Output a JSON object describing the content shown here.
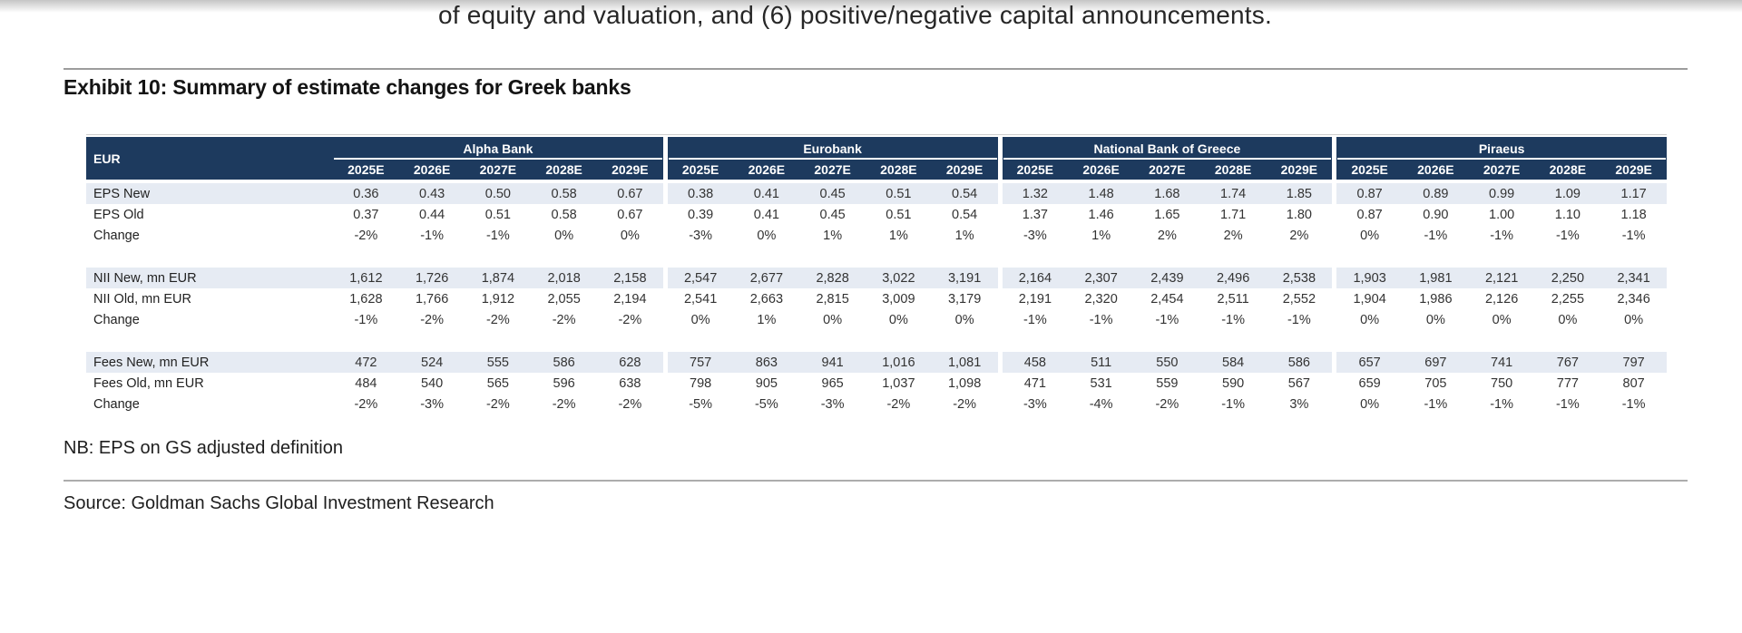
{
  "page": {
    "body_text": "of equity and valuation, and (6) positive/negative capital announcements.",
    "exhibit_title": "Exhibit 10: Summary of estimate changes for Greek banks",
    "note": "NB: EPS on GS adjusted definition",
    "source": "Source: Goldman Sachs Global Investment Research"
  },
  "colors": {
    "header_navy": "#1d3a5e",
    "row_shade": "#e6ebf3"
  },
  "table": {
    "corner_label": "EUR",
    "banks": [
      "Alpha Bank",
      "Eurobank",
      "National Bank of Greece",
      "Piraeus"
    ],
    "year_headers": [
      "2025E",
      "2026E",
      "2027E",
      "2028E",
      "2029E"
    ],
    "sections": [
      {
        "rows": [
          {
            "label": "EPS New",
            "shaded": true,
            "values": [
              [
                "0.36",
                "0.43",
                "0.50",
                "0.58",
                "0.67"
              ],
              [
                "0.38",
                "0.41",
                "0.45",
                "0.51",
                "0.54"
              ],
              [
                "1.32",
                "1.48",
                "1.68",
                "1.74",
                "1.85"
              ],
              [
                "0.87",
                "0.89",
                "0.99",
                "1.09",
                "1.17"
              ]
            ]
          },
          {
            "label": "EPS Old",
            "shaded": false,
            "values": [
              [
                "0.37",
                "0.44",
                "0.51",
                "0.58",
                "0.67"
              ],
              [
                "0.39",
                "0.41",
                "0.45",
                "0.51",
                "0.54"
              ],
              [
                "1.37",
                "1.46",
                "1.65",
                "1.71",
                "1.80"
              ],
              [
                "0.87",
                "0.90",
                "1.00",
                "1.10",
                "1.18"
              ]
            ]
          },
          {
            "label": "Change",
            "shaded": false,
            "values": [
              [
                "-2%",
                "-1%",
                "-1%",
                "0%",
                "0%"
              ],
              [
                "-3%",
                "0%",
                "1%",
                "1%",
                "1%"
              ],
              [
                "-3%",
                "1%",
                "2%",
                "2%",
                "2%"
              ],
              [
                "0%",
                "-1%",
                "-1%",
                "-1%",
                "-1%"
              ]
            ]
          }
        ]
      },
      {
        "rows": [
          {
            "label": "NII New, mn EUR",
            "shaded": true,
            "values": [
              [
                "1,612",
                "1,726",
                "1,874",
                "2,018",
                "2,158"
              ],
              [
                "2,547",
                "2,677",
                "2,828",
                "3,022",
                "3,191"
              ],
              [
                "2,164",
                "2,307",
                "2,439",
                "2,496",
                "2,538"
              ],
              [
                "1,903",
                "1,981",
                "2,121",
                "2,250",
                "2,341"
              ]
            ]
          },
          {
            "label": "NII Old, mn EUR",
            "shaded": false,
            "values": [
              [
                "1,628",
                "1,766",
                "1,912",
                "2,055",
                "2,194"
              ],
              [
                "2,541",
                "2,663",
                "2,815",
                "3,009",
                "3,179"
              ],
              [
                "2,191",
                "2,320",
                "2,454",
                "2,511",
                "2,552"
              ],
              [
                "1,904",
                "1,986",
                "2,126",
                "2,255",
                "2,346"
              ]
            ]
          },
          {
            "label": "Change",
            "shaded": false,
            "values": [
              [
                "-1%",
                "-2%",
                "-2%",
                "-2%",
                "-2%"
              ],
              [
                "0%",
                "1%",
                "0%",
                "0%",
                "0%"
              ],
              [
                "-1%",
                "-1%",
                "-1%",
                "-1%",
                "-1%"
              ],
              [
                "0%",
                "0%",
                "0%",
                "0%",
                "0%"
              ]
            ]
          }
        ]
      },
      {
        "rows": [
          {
            "label": "Fees New, mn EUR",
            "shaded": true,
            "values": [
              [
                "472",
                "524",
                "555",
                "586",
                "628"
              ],
              [
                "757",
                "863",
                "941",
                "1,016",
                "1,081"
              ],
              [
                "458",
                "511",
                "550",
                "584",
                "586"
              ],
              [
                "657",
                "697",
                "741",
                "767",
                "797"
              ]
            ]
          },
          {
            "label": "Fees Old, mn EUR",
            "shaded": false,
            "values": [
              [
                "484",
                "540",
                "565",
                "596",
                "638"
              ],
              [
                "798",
                "905",
                "965",
                "1,037",
                "1,098"
              ],
              [
                "471",
                "531",
                "559",
                "590",
                "567"
              ],
              [
                "659",
                "705",
                "750",
                "777",
                "807"
              ]
            ]
          },
          {
            "label": "Change",
            "shaded": false,
            "values": [
              [
                "-2%",
                "-3%",
                "-2%",
                "-2%",
                "-2%"
              ],
              [
                "-5%",
                "-5%",
                "-3%",
                "-2%",
                "-2%"
              ],
              [
                "-3%",
                "-4%",
                "-2%",
                "-1%",
                "3%"
              ],
              [
                "0%",
                "-1%",
                "-1%",
                "-1%",
                "-1%"
              ]
            ]
          }
        ]
      }
    ]
  }
}
